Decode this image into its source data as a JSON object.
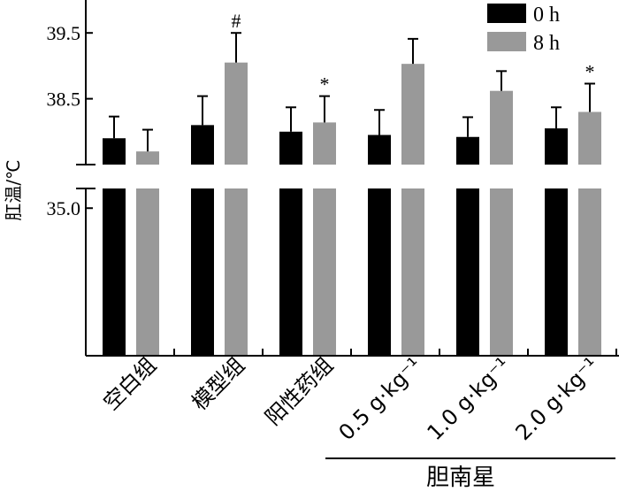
{
  "chart_data": {
    "type": "bar",
    "ylabel": "肛温/℃",
    "categories": [
      "空白组",
      "模型组",
      "阳性药组",
      "0.5 g·kg⁻¹",
      "1.0 g·kg⁻¹",
      "2.0 g·kg⁻¹"
    ],
    "category_group": {
      "label": "胆南星",
      "members": [
        "0.5 g·kg⁻¹",
        "1.0 g·kg⁻¹",
        "2.0 g·kg⁻¹"
      ]
    },
    "y_axis": {
      "broken": true,
      "ticks": [
        "35.0",
        "38.5",
        "39.5"
      ],
      "upper_range": [
        37.5,
        40.0
      ],
      "lower_range": [
        32.0,
        35.4
      ]
    },
    "series": [
      {
        "name": "0 h",
        "color": "#000000",
        "values": [
          37.9,
          38.1,
          38.0,
          37.95,
          37.92,
          38.05
        ],
        "errors": [
          0.33,
          0.44,
          0.37,
          0.38,
          0.3,
          0.32
        ]
      },
      {
        "name": "8 h",
        "color": "#999999",
        "values": [
          37.7,
          39.05,
          38.14,
          39.03,
          38.62,
          38.3
        ],
        "errors": [
          0.33,
          0.45,
          0.4,
          0.38,
          0.3,
          0.43
        ]
      }
    ],
    "annotations": [
      {
        "category": "模型组",
        "series": "8 h",
        "text": "#"
      },
      {
        "category": "阳性药组",
        "series": "8 h",
        "text": "*"
      },
      {
        "category": "2.0 g·kg⁻¹",
        "series": "8 h",
        "text": "*"
      }
    ],
    "legend_position": "top-right",
    "grid": false
  }
}
